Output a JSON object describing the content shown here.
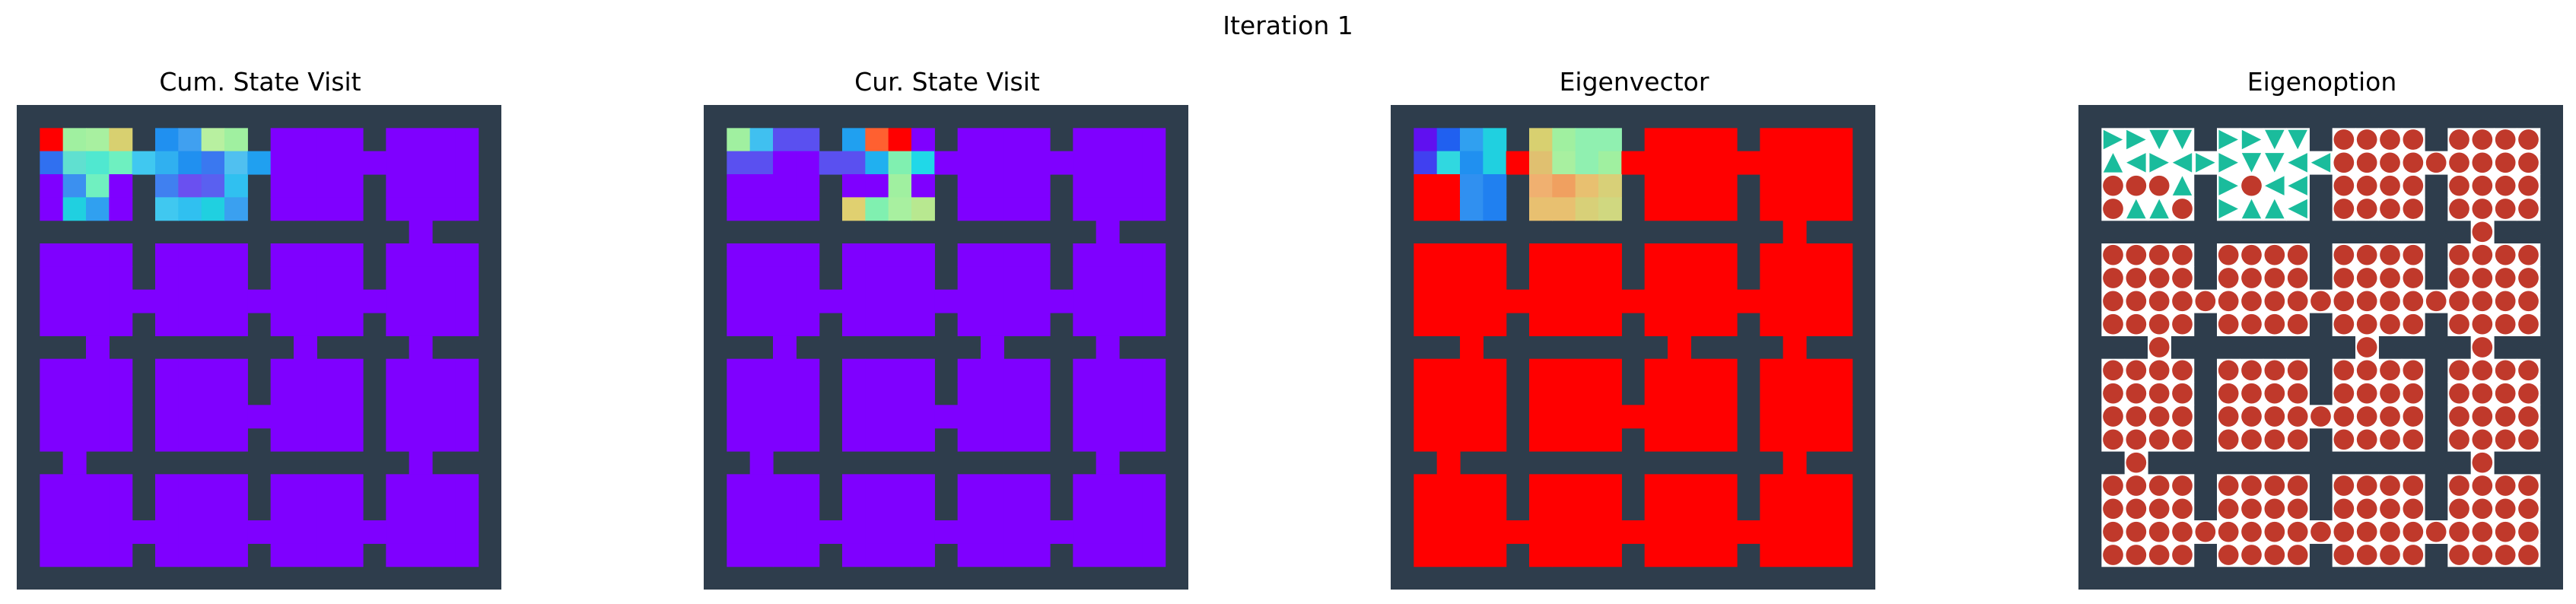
{
  "figure": {
    "title": "Iteration 1"
  },
  "colors": {
    "wall": "#2e3d4c",
    "empty": "#ffffff",
    "agent": "#c0392b",
    "arrow": "#1abc9c"
  },
  "maze": {
    "layout": [
      "WWWWWWWWWWWWWWWWWWWWW",
      "WFFFFWFFFFWFFFFWFFFFW",
      "WFFFFFFFFFFFFFFFFFFFW",
      "WFFFFWFFFFWFFFFWFFFFW",
      "WFFFFWFFFFWFFFFWFFFFW",
      "WWWWWWWWWWWWWWWWWFWWW",
      "WFFFFWFFFFWFFFFWFFFFW",
      "WFFFFWFFFFWFFFFWFFFFW",
      "WFFFFFFFFFFFFFFFFFFFW",
      "WFFFFWFFFFWFFFFWFFFFW",
      "WWWFWWWWWWWWFWWWWFWWW",
      "WFFFFWFFFFWFFFFWFFFFW",
      "WFFFFWFFFFWFFFFWFFFFW",
      "WFFFFWFFFFFFFFFWFFFFW",
      "WFFFFWFFFFWFFFFWFFFFW",
      "WWFWWWWWWWWWWWWWWFWWW",
      "WFFFFWFFFFWFFFFWFFFFW",
      "WFFFFWFFFFWFFFFWFFFFW",
      "WFFFFFFFFFFFFFFFFFFFW",
      "WFFFFWFFFFWFFFFWFFFFW",
      "WWWWWWWWWWWWWWWWWWWWW"
    ]
  },
  "chart_data": [
    {
      "type": "heatmap",
      "title": "Cum. State Visit",
      "base_color": "#7f00ff",
      "cells": [
        {
          "row": 1,
          "col": 1,
          "color": "#ff0000"
        },
        {
          "row": 1,
          "col": 2,
          "color": "#a0f0a0"
        },
        {
          "row": 1,
          "col": 3,
          "color": "#a8f0a0"
        },
        {
          "row": 1,
          "col": 4,
          "color": "#d8d070"
        },
        {
          "row": 1,
          "col": 6,
          "color": "#2090f0"
        },
        {
          "row": 1,
          "col": 7,
          "color": "#40a0f0"
        },
        {
          "row": 1,
          "col": 8,
          "color": "#b8f0a0"
        },
        {
          "row": 1,
          "col": 9,
          "color": "#a0f0a0"
        },
        {
          "row": 2,
          "col": 1,
          "color": "#3070f0"
        },
        {
          "row": 2,
          "col": 2,
          "color": "#60e0d0"
        },
        {
          "row": 2,
          "col": 3,
          "color": "#50e8d0"
        },
        {
          "row": 2,
          "col": 4,
          "color": "#6ef0c0"
        },
        {
          "row": 2,
          "col": 5,
          "color": "#40c8f0"
        },
        {
          "row": 2,
          "col": 6,
          "color": "#30b0f0"
        },
        {
          "row": 2,
          "col": 7,
          "color": "#2090f0"
        },
        {
          "row": 2,
          "col": 8,
          "color": "#3a78f0"
        },
        {
          "row": 2,
          "col": 9,
          "color": "#50c0f0"
        },
        {
          "row": 2,
          "col": 10,
          "color": "#20a0f0"
        },
        {
          "row": 3,
          "col": 2,
          "color": "#3b90f0"
        },
        {
          "row": 3,
          "col": 3,
          "color": "#70f0c0"
        },
        {
          "row": 3,
          "col": 6,
          "color": "#4080f0"
        },
        {
          "row": 3,
          "col": 7,
          "color": "#6a50f0"
        },
        {
          "row": 3,
          "col": 8,
          "color": "#5a60f0"
        },
        {
          "row": 3,
          "col": 9,
          "color": "#30c0f0"
        },
        {
          "row": 4,
          "col": 2,
          "color": "#20d0e0"
        },
        {
          "row": 4,
          "col": 3,
          "color": "#30a0f0"
        },
        {
          "row": 4,
          "col": 6,
          "color": "#40c8f0"
        },
        {
          "row": 4,
          "col": 7,
          "color": "#30c0f0"
        },
        {
          "row": 4,
          "col": 8,
          "color": "#20d0e0"
        },
        {
          "row": 4,
          "col": 9,
          "color": "#3aa0f0"
        }
      ]
    },
    {
      "type": "heatmap",
      "title": "Cur. State Visit",
      "base_color": "#7f00ff",
      "cells": [
        {
          "row": 1,
          "col": 1,
          "color": "#a0f0a0"
        },
        {
          "row": 1,
          "col": 2,
          "color": "#40c0f0"
        },
        {
          "row": 1,
          "col": 3,
          "color": "#5a50f0"
        },
        {
          "row": 1,
          "col": 4,
          "color": "#5a50f0"
        },
        {
          "row": 1,
          "col": 6,
          "color": "#20a0f0"
        },
        {
          "row": 1,
          "col": 7,
          "color": "#ff6030"
        },
        {
          "row": 1,
          "col": 8,
          "color": "#ff0000"
        },
        {
          "row": 2,
          "col": 1,
          "color": "#5a50f0"
        },
        {
          "row": 2,
          "col": 2,
          "color": "#5a50f0"
        },
        {
          "row": 2,
          "col": 5,
          "color": "#5a50f0"
        },
        {
          "row": 2,
          "col": 6,
          "color": "#5a50f0"
        },
        {
          "row": 2,
          "col": 7,
          "color": "#20b0f0"
        },
        {
          "row": 2,
          "col": 8,
          "color": "#80f0b0"
        },
        {
          "row": 2,
          "col": 9,
          "color": "#20d8e8"
        },
        {
          "row": 3,
          "col": 8,
          "color": "#a0f0a0"
        },
        {
          "row": 4,
          "col": 6,
          "color": "#e0d070"
        },
        {
          "row": 4,
          "col": 7,
          "color": "#80f0b0"
        },
        {
          "row": 4,
          "col": 8,
          "color": "#a8f0a0"
        },
        {
          "row": 4,
          "col": 9,
          "color": "#b8e890"
        }
      ]
    },
    {
      "type": "heatmap",
      "title": "Eigenvector",
      "base_color": "#ff0000",
      "cells": [
        {
          "row": 1,
          "col": 1,
          "color": "#6010f0"
        },
        {
          "row": 1,
          "col": 2,
          "color": "#2060f0"
        },
        {
          "row": 1,
          "col": 3,
          "color": "#30a0f0"
        },
        {
          "row": 1,
          "col": 4,
          "color": "#20d0e0"
        },
        {
          "row": 1,
          "col": 6,
          "color": "#d8d070"
        },
        {
          "row": 1,
          "col": 7,
          "color": "#a0f0a0"
        },
        {
          "row": 1,
          "col": 8,
          "color": "#90f0b0"
        },
        {
          "row": 1,
          "col": 9,
          "color": "#90f0b0"
        },
        {
          "row": 2,
          "col": 1,
          "color": "#4040f0"
        },
        {
          "row": 2,
          "col": 2,
          "color": "#30d8e0"
        },
        {
          "row": 2,
          "col": 3,
          "color": "#2090f0"
        },
        {
          "row": 2,
          "col": 4,
          "color": "#20d0e0"
        },
        {
          "row": 2,
          "col": 6,
          "color": "#e0c070"
        },
        {
          "row": 2,
          "col": 7,
          "color": "#a8f0a0"
        },
        {
          "row": 2,
          "col": 8,
          "color": "#90f0b0"
        },
        {
          "row": 2,
          "col": 9,
          "color": "#a0f0a0"
        },
        {
          "row": 3,
          "col": 1,
          "color": "#ff0000"
        },
        {
          "row": 3,
          "col": 2,
          "color": "#ff0000"
        },
        {
          "row": 3,
          "col": 3,
          "color": "#3090f0"
        },
        {
          "row": 3,
          "col": 4,
          "color": "#2080f0"
        },
        {
          "row": 3,
          "col": 6,
          "color": "#f0b070"
        },
        {
          "row": 3,
          "col": 7,
          "color": "#f0a060"
        },
        {
          "row": 3,
          "col": 8,
          "color": "#e8c070"
        },
        {
          "row": 3,
          "col": 9,
          "color": "#d8d078"
        },
        {
          "row": 3,
          "col": 10,
          "color": "#c0e088"
        },
        {
          "row": 4,
          "col": 1,
          "color": "#ff0000"
        },
        {
          "row": 4,
          "col": 2,
          "color": "#ff0000"
        },
        {
          "row": 4,
          "col": 3,
          "color": "#3090f0"
        },
        {
          "row": 4,
          "col": 4,
          "color": "#2080f0"
        },
        {
          "row": 4,
          "col": 6,
          "color": "#e8c070"
        },
        {
          "row": 4,
          "col": 7,
          "color": "#e8c070"
        },
        {
          "row": 4,
          "col": 8,
          "color": "#d8d078"
        },
        {
          "row": 4,
          "col": 9,
          "color": "#d0d880"
        }
      ]
    },
    {
      "type": "table",
      "title": "Eigenoption",
      "agent": {
        "row": 3,
        "col": 7
      },
      "arrow_cells": [
        {
          "row": 1,
          "col": 1,
          "dir": "right"
        },
        {
          "row": 1,
          "col": 2,
          "dir": "right"
        },
        {
          "row": 1,
          "col": 3,
          "dir": "down"
        },
        {
          "row": 1,
          "col": 4,
          "dir": "down"
        },
        {
          "row": 2,
          "col": 1,
          "dir": "up"
        },
        {
          "row": 2,
          "col": 2,
          "dir": "left"
        },
        {
          "row": 2,
          "col": 3,
          "dir": "right"
        },
        {
          "row": 2,
          "col": 4,
          "dir": "left"
        },
        {
          "row": 3,
          "col": 4,
          "dir": "up"
        },
        {
          "row": 4,
          "col": 2,
          "dir": "up"
        },
        {
          "row": 4,
          "col": 3,
          "dir": "up"
        },
        {
          "row": 1,
          "col": 6,
          "dir": "right"
        },
        {
          "row": 1,
          "col": 7,
          "dir": "right"
        },
        {
          "row": 1,
          "col": 8,
          "dir": "down"
        },
        {
          "row": 1,
          "col": 9,
          "dir": "down"
        },
        {
          "row": 2,
          "col": 5,
          "dir": "right"
        },
        {
          "row": 2,
          "col": 6,
          "dir": "right"
        },
        {
          "row": 2,
          "col": 7,
          "dir": "down"
        },
        {
          "row": 2,
          "col": 8,
          "dir": "down"
        },
        {
          "row": 2,
          "col": 9,
          "dir": "left"
        },
        {
          "row": 2,
          "col": 10,
          "dir": "left"
        },
        {
          "row": 3,
          "col": 6,
          "dir": "right"
        },
        {
          "row": 3,
          "col": 8,
          "dir": "left"
        },
        {
          "row": 3,
          "col": 9,
          "dir": "left"
        },
        {
          "row": 4,
          "col": 6,
          "dir": "right"
        },
        {
          "row": 4,
          "col": 7,
          "dir": "up"
        },
        {
          "row": 4,
          "col": 8,
          "dir": "up"
        },
        {
          "row": 4,
          "col": 9,
          "dir": "left"
        }
      ]
    }
  ]
}
